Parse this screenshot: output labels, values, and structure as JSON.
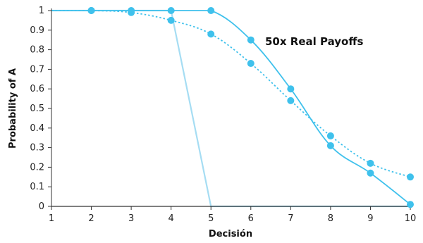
{
  "chart_data": {
    "type": "line",
    "xlabel": "Decisión",
    "ylabel": "Probability of A",
    "annotation": "50x Real Payoffs",
    "x": [
      1,
      2,
      3,
      4,
      5,
      6,
      7,
      8,
      9,
      10
    ],
    "xlim": [
      1,
      10
    ],
    "ylim": [
      0,
      1
    ],
    "x_ticks": [
      "1",
      "2",
      "3",
      "4",
      "5",
      "6",
      "7",
      "8",
      "9",
      "10"
    ],
    "y_ticks": [
      "0",
      "0.1",
      "0.2",
      "0.3",
      "0.4",
      "0.5",
      "0.6",
      "0.7",
      "0.8",
      "0.9",
      "1"
    ],
    "grid": false,
    "series": [
      {
        "style": "solid-markers",
        "color": "#3FC1EC",
        "points": [
          [
            1,
            1
          ],
          [
            2,
            1
          ],
          [
            3,
            1
          ],
          [
            4,
            1
          ],
          [
            5,
            1
          ],
          [
            6,
            0.85
          ],
          [
            7,
            0.6
          ],
          [
            8,
            0.31
          ],
          [
            9,
            0.17
          ],
          [
            10,
            0.01
          ]
        ]
      },
      {
        "style": "dotted-markers",
        "color": "#3FC1EC",
        "points": [
          [
            1,
            1
          ],
          [
            2,
            1
          ],
          [
            3,
            0.99
          ],
          [
            4,
            0.95
          ],
          [
            5,
            0.88
          ],
          [
            6,
            0.73
          ],
          [
            7,
            0.54
          ],
          [
            8,
            0.36
          ],
          [
            9,
            0.22
          ],
          [
            10,
            0.15
          ]
        ]
      },
      {
        "style": "solid",
        "color": "#A6DDF3",
        "points": [
          [
            1,
            1
          ],
          [
            2,
            1
          ],
          [
            3,
            1
          ],
          [
            4,
            1
          ],
          [
            5,
            0
          ],
          [
            6,
            0
          ],
          [
            7,
            0
          ],
          [
            8,
            0
          ],
          [
            9,
            0
          ],
          [
            10,
            0
          ]
        ]
      }
    ]
  }
}
